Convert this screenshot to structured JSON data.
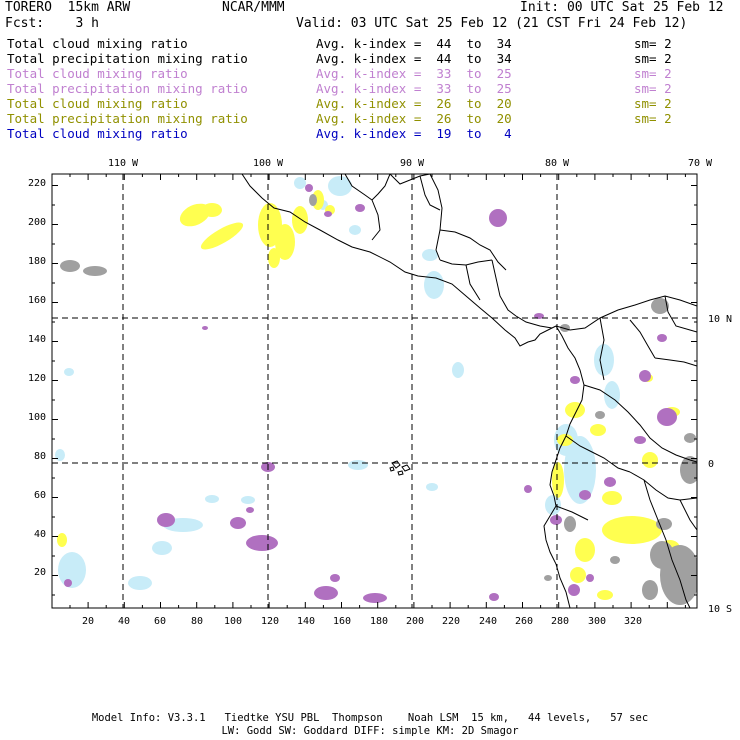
{
  "header": {
    "model": "TORERO  15km ARW",
    "org": "NCAR/MMM",
    "init": "Init: 00 UTC Sat 25 Feb 12",
    "fcst": "Fcst:    3 h",
    "valid": "Valid: 03 UTC Sat 25 Feb 12 (21 CST Fri 24 Feb 12)"
  },
  "legend": [
    {
      "label": "Total cloud mixing ratio",
      "avg": "Avg. k-index =  44  to  34",
      "sm": "sm= 2",
      "color": "#000000"
    },
    {
      "label": "Total precipitation mixing ratio",
      "avg": "Avg. k-index =  44  to  34",
      "sm": "sm= 2",
      "color": "#000000"
    },
    {
      "label": "Total cloud mixing ratio",
      "avg": "Avg. k-index =  33  to  25",
      "sm": "sm= 2",
      "color": "#c080d0"
    },
    {
      "label": "Total precipitation mixing ratio",
      "avg": "Avg. k-index =  33  to  25",
      "sm": "sm= 2",
      "color": "#c080d0"
    },
    {
      "label": "Total cloud mixing ratio",
      "avg": "Avg. k-index =  26  to  20",
      "sm": "sm= 2",
      "color": "#909000"
    },
    {
      "label": "Total precipitation mixing ratio",
      "avg": "Avg. k-index =  26  to  20",
      "sm": "sm= 2",
      "color": "#909000"
    },
    {
      "label": "Total cloud mixing ratio",
      "avg": "Avg. k-index =  19  to   4",
      "sm": "",
      "color": "#0000c0"
    }
  ],
  "map": {
    "lon_labels": [
      "110 W",
      "100 W",
      "90 W",
      "80 W",
      "70 W"
    ],
    "lat_labels": [
      "10 N",
      "0",
      "10 S"
    ],
    "x_ticks": [
      "20",
      "40",
      "60",
      "80",
      "100",
      "120",
      "140",
      "160",
      "180",
      "200",
      "220",
      "240",
      "260",
      "280",
      "300",
      "320"
    ],
    "y_ticks": [
      "20",
      "40",
      "60",
      "80",
      "100",
      "120",
      "140",
      "160",
      "180",
      "200",
      "220"
    ],
    "colors": {
      "gray": "#a0a0a0",
      "purple": "#b070c0",
      "yellow": "#ffff50",
      "lightblue": "#c8ecf8",
      "coast": "#000000"
    }
  },
  "footer": {
    "line1": "Model Info: V3.3.1   Tiedtke YSU PBL  Thompson    Noah LSM  15 km,   44 levels,   57 sec",
    "line2": "LW: Godd SW: Goddard DIFF: simple KM: 2D Smagor"
  }
}
